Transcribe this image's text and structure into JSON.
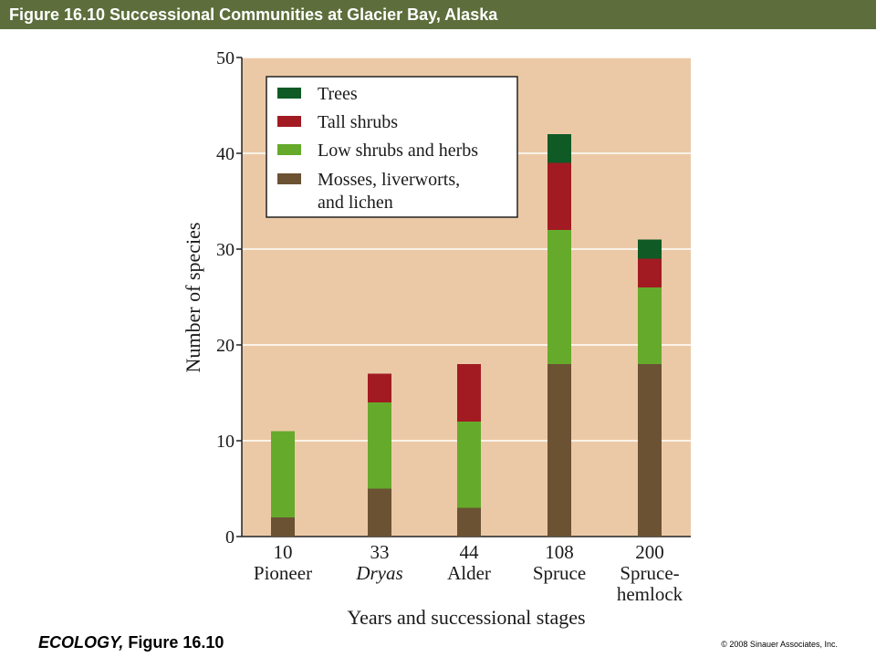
{
  "header": {
    "title": "Figure 16.10  Successional Communities at Glacier Bay, Alaska"
  },
  "footer": {
    "book": "ECOLOGY,",
    "figure": "Figure 16.10",
    "copyright": "© 2008 Sinauer Associates, Inc."
  },
  "colors": {
    "plot_bg": "#ecc9a6",
    "title_bar": "#5d6e3c",
    "trees": "#0f5a25",
    "tall_shrubs": "#a21b22",
    "low_shrubs": "#66aa2c",
    "mosses": "#6b5233"
  },
  "chart_data": {
    "type": "bar",
    "stacked": true,
    "ylabel": "Number of species",
    "xlabel": "Years and successional stages",
    "ylim": [
      0,
      50
    ],
    "yticks": [
      0,
      10,
      20,
      30,
      40,
      50
    ],
    "grid": true,
    "legend_position": "top-left",
    "categories": [
      {
        "years": "10",
        "stage": "Pioneer",
        "italic": false
      },
      {
        "years": "33",
        "stage": "Dryas",
        "italic": true
      },
      {
        "years": "44",
        "stage": "Alder",
        "italic": false
      },
      {
        "years": "108",
        "stage": "Spruce",
        "italic": false
      },
      {
        "years": "200",
        "stage": "Spruce-",
        "stage2": "hemlock",
        "italic": false
      }
    ],
    "series": [
      {
        "key": "mosses",
        "name": "Mosses, liverworts,",
        "name2": "and lichen",
        "values": [
          2,
          5,
          3,
          18,
          18
        ]
      },
      {
        "key": "low_shrubs",
        "name": "Low shrubs and herbs",
        "values": [
          9,
          9,
          9,
          14,
          8
        ]
      },
      {
        "key": "tall_shrubs",
        "name": "Tall shrubs",
        "values": [
          0,
          3,
          6,
          7,
          3
        ]
      },
      {
        "key": "trees",
        "name": "Trees",
        "values": [
          0,
          0,
          0,
          3,
          2
        ]
      }
    ],
    "legend_order": [
      "trees",
      "tall_shrubs",
      "low_shrubs",
      "mosses"
    ]
  }
}
